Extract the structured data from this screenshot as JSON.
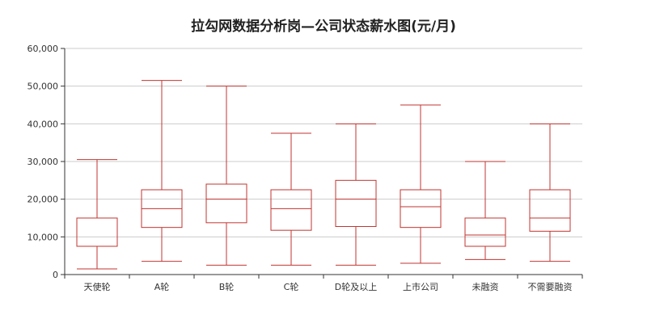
{
  "chart_data": {
    "type": "boxplot",
    "title": "拉勾网数据分析岗—公司状态薪水图(元/月)",
    "categories": [
      "天使轮",
      "A轮",
      "B轮",
      "C轮",
      "D轮及以上",
      "上市公司",
      "未融资",
      "不需要融资"
    ],
    "boxes": [
      {
        "min": 1500,
        "q1": 7500,
        "median": 15000,
        "q3": 15000,
        "max": 30500
      },
      {
        "min": 3500,
        "q1": 12500,
        "median": 17500,
        "q3": 22500,
        "max": 51500
      },
      {
        "min": 2500,
        "q1": 13750,
        "median": 20000,
        "q3": 24000,
        "max": 50000
      },
      {
        "min": 2500,
        "q1": 11750,
        "median": 17500,
        "q3": 22500,
        "max": 37500
      },
      {
        "min": 2500,
        "q1": 12750,
        "median": 20000,
        "q3": 25000,
        "max": 40000
      },
      {
        "min": 3000,
        "q1": 12500,
        "median": 18000,
        "q3": 22500,
        "max": 45000
      },
      {
        "min": 4000,
        "q1": 7500,
        "median": 10500,
        "q3": 15000,
        "max": 30000
      },
      {
        "min": 3500,
        "q1": 11500,
        "median": 15000,
        "q3": 22500,
        "max": 40000
      }
    ],
    "ylim": [
      0,
      60000
    ],
    "yticks": [
      0,
      10000,
      20000,
      30000,
      40000,
      50000,
      60000
    ],
    "ytick_labels": [
      "0",
      "10,000",
      "20,000",
      "30,000",
      "40,000",
      "50,000",
      "60,000"
    ],
    "grid": true,
    "colors": {
      "box": "#c23531",
      "grid": "#cccccc",
      "axis": "#333333",
      "text": "#333333"
    }
  }
}
